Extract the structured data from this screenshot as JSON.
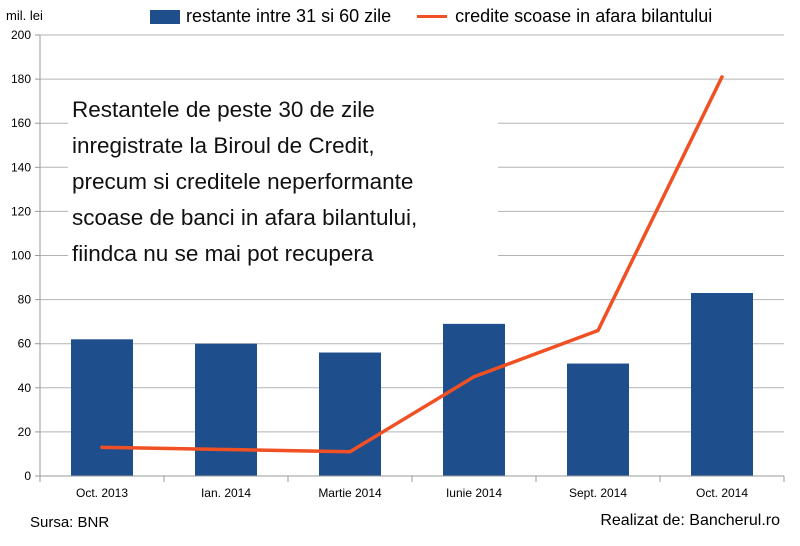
{
  "unit_label": "mil. lei",
  "legend": {
    "bar_label": "restante intre 31 si 60 zile",
    "line_label": "credite scoase in afara bilantului"
  },
  "annotation_lines": [
    "Restantele de peste 30 de zile",
    "inregistrate la Biroul de Credit,",
    "precum si creditele neperformante",
    "scoase de banci in afara bilantului,",
    "fiindca nu se mai pot recupera"
  ],
  "footer": {
    "source": "Sursa: BNR",
    "credit": "Realizat de: Bancherul.ro"
  },
  "colors": {
    "bar": "#1f4e8c",
    "line": "#f05023",
    "grid": "#b3b3b3",
    "axis": "#9a9a9a"
  },
  "chart_data": {
    "type": "bar",
    "categories": [
      "Oct. 2013",
      "Ian. 2014",
      "Martie 2014",
      "Iunie 2014",
      "Sept. 2014",
      "Oct. 2014"
    ],
    "series": [
      {
        "name": "restante intre 31 si 60 zile",
        "type": "bar",
        "values": [
          62,
          60,
          56,
          69,
          51,
          83
        ]
      },
      {
        "name": "credite scoase in afara bilantului",
        "type": "line",
        "values": [
          13,
          12,
          11,
          45,
          66,
          181
        ]
      }
    ],
    "ylabel": "mil. lei",
    "ylim": [
      0,
      200
    ],
    "yticks": [
      0,
      20,
      40,
      60,
      80,
      100,
      120,
      140,
      160,
      180,
      200
    ],
    "grid": true,
    "legend_position": "top"
  }
}
